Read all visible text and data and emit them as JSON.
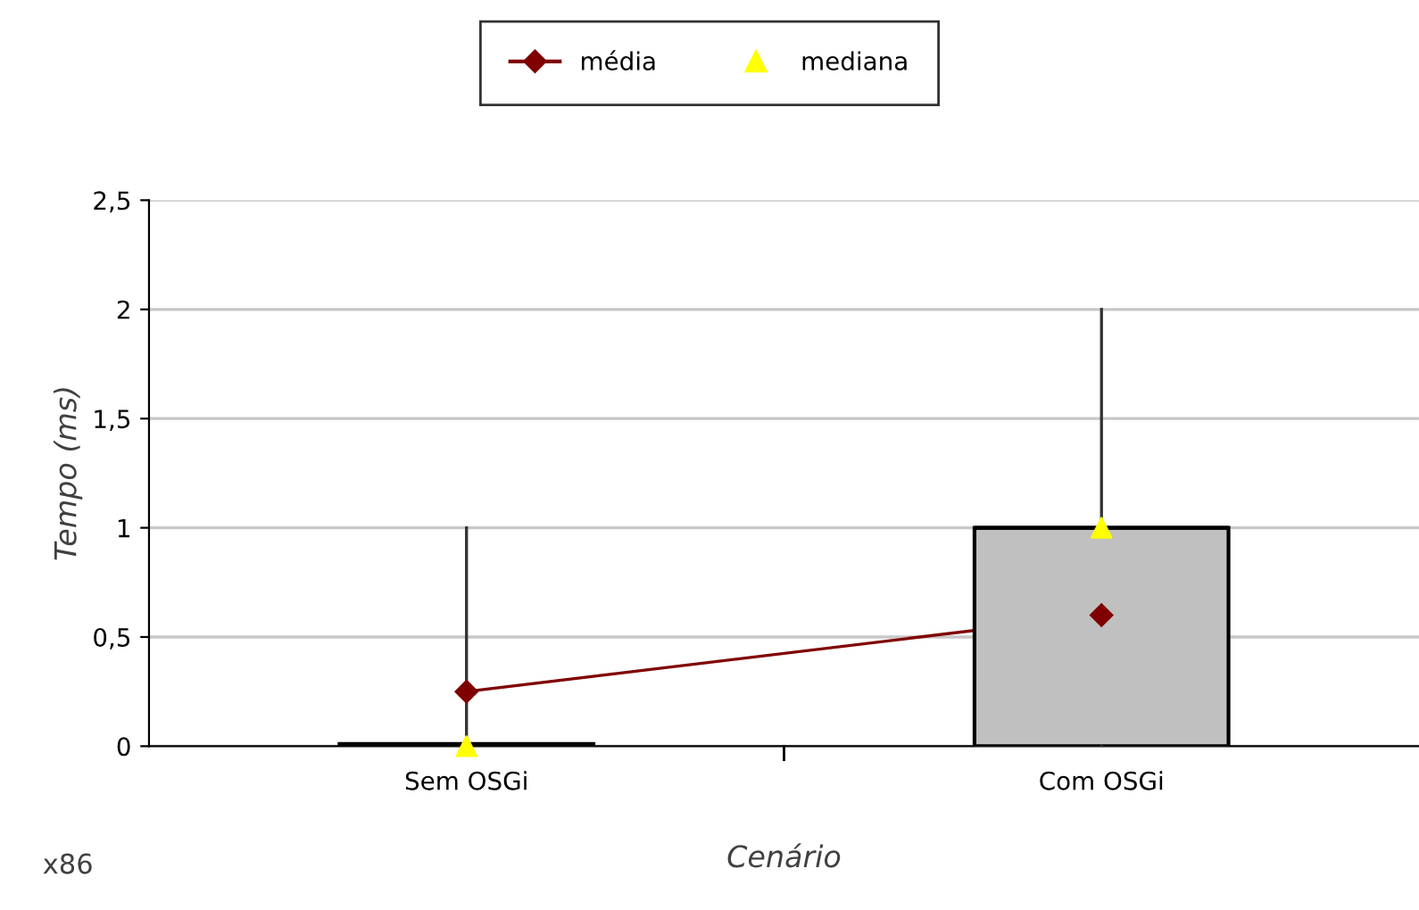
{
  "chart_data": {
    "type": "box",
    "xlabel": "Cenário",
    "ylabel": "Tempo (ms)",
    "categories": [
      "Sem OSGi",
      "Com OSGi"
    ],
    "boxes": [
      {
        "low": 0,
        "q1": 0,
        "median": 0,
        "q3": 0.01,
        "high": 1
      },
      {
        "low": 0,
        "q1": 0,
        "median": 1,
        "q3": 1,
        "high": 2
      }
    ],
    "color": "#c0c0c0",
    "series": [
      {
        "name": "média",
        "type": "line",
        "color": "#800000",
        "marker": "diamond",
        "values": [
          0.25,
          0.6
        ]
      },
      {
        "name": "mediana",
        "type": "scatter",
        "color": "#ffff00",
        "marker": "triangle",
        "values": [
          0,
          1
        ]
      }
    ],
    "ylim": [
      0,
      2.5
    ],
    "yticks": [
      0,
      {
        "value": 0.5,
        "label": "0,5"
      },
      1,
      {
        "value": 1.5,
        "label": "1,5"
      },
      2,
      {
        "value": 2.5,
        "label": "2,5"
      }
    ],
    "grid": "y",
    "legend": "top",
    "annotations": [
      "x86"
    ]
  }
}
